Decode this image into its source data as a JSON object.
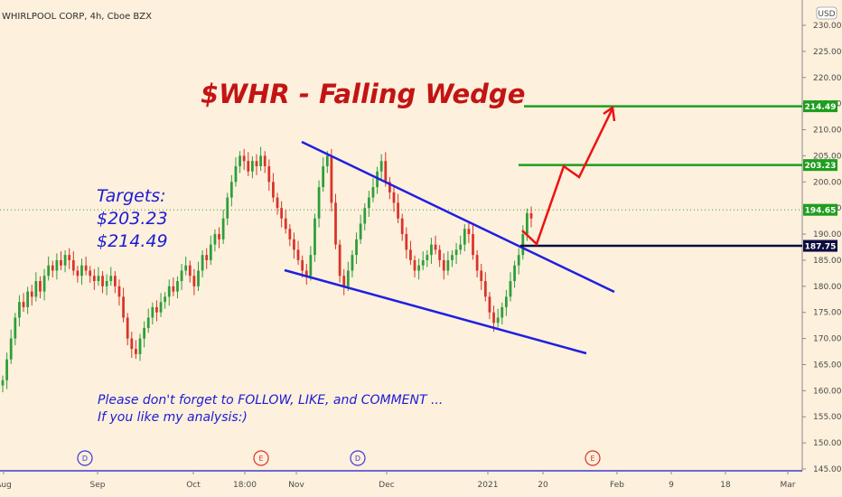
{
  "header": {
    "symbol": "WHIRLPOOL CORP, 4h, Cboe BZX",
    "currency": "USD"
  },
  "chart_data": {
    "type": "candlestick",
    "title": "$WHR - Falling Wedge",
    "annotation_lines": [
      "Targets:",
      "$203.23",
      "$214.49"
    ],
    "footer_lines": [
      "Please don't forget to FOLLOW, LIKE, and COMMENT ...",
      "If you like my analysis:)"
    ],
    "x_tick_labels": [
      "Aug",
      "Sep",
      "Oct",
      "18:00",
      "Nov",
      "Dec",
      "2021",
      "20",
      "Feb",
      "9",
      "18",
      "Mar"
    ],
    "y_tick_labels": [
      "145.00",
      "150.00",
      "155.00",
      "160.00",
      "165.00",
      "170.00",
      "175.00",
      "180.00",
      "185.00",
      "190.00",
      "195.00",
      "200.00",
      "205.00",
      "210.00",
      "215.00",
      "220.00",
      "225.00",
      "230.00"
    ],
    "ylim": [
      145,
      230
    ],
    "price_tags": [
      {
        "label": "214.49",
        "value": 214.49,
        "color": "#1e9e1e"
      },
      {
        "label": "203.23",
        "value": 203.23,
        "color": "#1e9e1e"
      },
      {
        "label": "194.65",
        "value": 194.65,
        "color": "#1e9e1e"
      },
      {
        "label": "187.75",
        "value": 187.75,
        "color": "#0c0c40"
      }
    ],
    "target_levels": [
      214.49,
      203.23
    ],
    "support_level": 187.75,
    "last_price": 194.65,
    "events": [
      {
        "label": "D",
        "at": "Aug"
      },
      {
        "label": "E",
        "at": "Oct"
      },
      {
        "label": "D",
        "at": "Nov"
      },
      {
        "label": "E",
        "at": "2021"
      }
    ],
    "series": [
      {
        "values": [
          162,
          166,
          170,
          174,
          177,
          176,
          179,
          178,
          181,
          179,
          182,
          184,
          183,
          185,
          184,
          186,
          185,
          183,
          182,
          184,
          183,
          182,
          181,
          182,
          180,
          181,
          182,
          180,
          178,
          174,
          170,
          168,
          167,
          170,
          172,
          174,
          176,
          175,
          177,
          178,
          180,
          179,
          181,
          183,
          184,
          182,
          180,
          183,
          186,
          185,
          188,
          190,
          189,
          193,
          197,
          200,
          203,
          205,
          204,
          202,
          204,
          203,
          205,
          203,
          200,
          197,
          195,
          193,
          191,
          189,
          187,
          185,
          183,
          182,
          186,
          193,
          199,
          203,
          205,
          196,
          188,
          182,
          180,
          183,
          186,
          189,
          192,
          195,
          197,
          199,
          202,
          204,
          200,
          198,
          196,
          193,
          190,
          187,
          185,
          183,
          184,
          185,
          186,
          188,
          187,
          185,
          183,
          185,
          186,
          187,
          188,
          191,
          190,
          186,
          183,
          181,
          178,
          175,
          173,
          174,
          176,
          178,
          181,
          184,
          186,
          190,
          194,
          193
        ]
      }
    ]
  }
}
